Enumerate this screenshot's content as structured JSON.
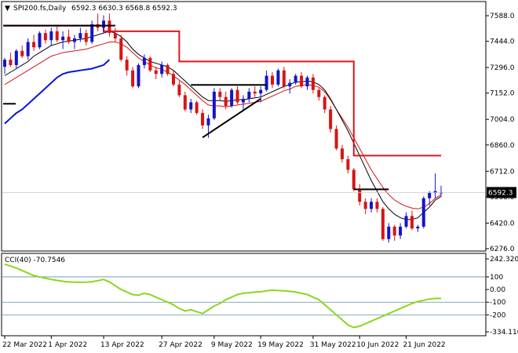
{
  "chart_data": {
    "type": "candlestick",
    "header": {
      "symbol": "SPI200.fs,Daily",
      "ohlc": "6592.3 6630.3 6568.8 6592.3"
    },
    "price_axis": {
      "ticks": [
        "7588.0",
        "7444.0",
        "7296.0",
        "7152.0",
        "7004.0",
        "6860.0",
        "6712.0",
        "6568.0",
        "6420.0",
        "6276.0"
      ],
      "tick_values": [
        7588,
        7444,
        7296,
        7152,
        7004,
        6860,
        6712,
        6568,
        6420,
        6276
      ],
      "last_price_label": "6592.3",
      "last_price": 6592.3
    },
    "cci_panel": {
      "title": "CCI(40) -70.7546",
      "ticks": [
        "242.3203",
        "100",
        "0.00",
        "-100",
        "-200",
        "-334.110"
      ],
      "tick_values": [
        242.3203,
        100,
        0,
        -100,
        -200,
        -334.11
      ],
      "levels": [
        100,
        -100,
        -200
      ]
    },
    "date_labels": [
      "22 Mar 2022",
      "1 Apr 2022",
      "13 Apr 2022",
      "27 Apr 2022",
      "9 May 2022",
      "19 May 2022",
      "31 May 2022",
      "10 Jun 2022",
      "21 Jun 2022"
    ],
    "date_label_bar_index": [
      0,
      8,
      17,
      27,
      36,
      44,
      53,
      61,
      69
    ],
    "candles": [
      [
        7300,
        7350,
        7260,
        7340
      ],
      [
        7340,
        7380,
        7300,
        7310
      ],
      [
        7310,
        7400,
        7290,
        7390
      ],
      [
        7390,
        7420,
        7350,
        7360
      ],
      [
        7360,
        7460,
        7340,
        7440
      ],
      [
        7440,
        7480,
        7390,
        7410
      ],
      [
        7410,
        7500,
        7400,
        7490
      ],
      [
        7490,
        7510,
        7430,
        7450
      ],
      [
        7450,
        7520,
        7420,
        7500
      ],
      [
        7500,
        7530,
        7440,
        7450
      ],
      [
        7450,
        7500,
        7400,
        7470
      ],
      [
        7470,
        7510,
        7430,
        7440
      ],
      [
        7440,
        7480,
        7400,
        7460
      ],
      [
        7460,
        7520,
        7440,
        7490
      ],
      [
        7490,
        7510,
        7420,
        7440
      ],
      [
        7440,
        7560,
        7430,
        7540
      ],
      [
        7540,
        7600,
        7500,
        7520
      ],
      [
        7520,
        7590,
        7490,
        7560
      ],
      [
        7560,
        7600,
        7470,
        7490
      ],
      [
        7490,
        7520,
        7440,
        7460
      ],
      [
        7460,
        7480,
        7330,
        7340
      ],
      [
        7340,
        7360,
        7250,
        7280
      ],
      [
        7280,
        7300,
        7180,
        7190
      ],
      [
        7190,
        7320,
        7180,
        7310
      ],
      [
        7310,
        7370,
        7290,
        7350
      ],
      [
        7350,
        7360,
        7270,
        7280
      ],
      [
        7280,
        7300,
        7230,
        7260
      ],
      [
        7260,
        7330,
        7240,
        7310
      ],
      [
        7310,
        7320,
        7250,
        7260
      ],
      [
        7260,
        7280,
        7190,
        7200
      ],
      [
        7200,
        7220,
        7130,
        7140
      ],
      [
        7140,
        7160,
        7050,
        7060
      ],
      [
        7060,
        7120,
        7040,
        7100
      ],
      [
        7100,
        7110,
        7030,
        7040
      ],
      [
        7040,
        7060,
        6950,
        6970
      ],
      [
        6970,
        7030,
        6900,
        7010
      ],
      [
        7010,
        7180,
        7000,
        7160
      ],
      [
        7160,
        7180,
        7110,
        7130
      ],
      [
        7130,
        7160,
        7060,
        7080
      ],
      [
        7080,
        7180,
        7070,
        7170
      ],
      [
        7170,
        7190,
        7090,
        7100
      ],
      [
        7100,
        7140,
        7050,
        7120
      ],
      [
        7120,
        7180,
        7100,
        7160
      ],
      [
        7160,
        7190,
        7130,
        7150
      ],
      [
        7150,
        7190,
        7100,
        7170
      ],
      [
        7170,
        7280,
        7160,
        7250
      ],
      [
        7250,
        7270,
        7180,
        7200
      ],
      [
        7200,
        7290,
        7190,
        7280
      ],
      [
        7280,
        7300,
        7180,
        7190
      ],
      [
        7190,
        7230,
        7150,
        7210
      ],
      [
        7210,
        7260,
        7200,
        7250
      ],
      [
        7250,
        7270,
        7180,
        7190
      ],
      [
        7190,
        7250,
        7170,
        7240
      ],
      [
        7240,
        7260,
        7150,
        7170
      ],
      [
        7170,
        7180,
        7110,
        7130
      ],
      [
        7130,
        7140,
        7040,
        7060
      ],
      [
        7060,
        7080,
        6930,
        6950
      ],
      [
        6950,
        6970,
        6830,
        6840
      ],
      [
        6840,
        6860,
        6760,
        6780
      ],
      [
        6780,
        6800,
        6700,
        6720
      ],
      [
        6720,
        6730,
        6600,
        6610
      ],
      [
        6610,
        6640,
        6520,
        6540
      ],
      [
        6540,
        6560,
        6470,
        6500
      ],
      [
        6500,
        6560,
        6480,
        6540
      ],
      [
        6540,
        6560,
        6480,
        6500
      ],
      [
        6500,
        6510,
        6320,
        6330
      ],
      [
        6330,
        6420,
        6310,
        6400
      ],
      [
        6400,
        6410,
        6320,
        6350
      ],
      [
        6350,
        6420,
        6330,
        6400
      ],
      [
        6400,
        6480,
        6390,
        6460
      ],
      [
        6460,
        6490,
        6380,
        6390
      ],
      [
        6390,
        6410,
        6370,
        6400
      ],
      [
        6400,
        6570,
        6390,
        6560
      ],
      [
        6560,
        6600,
        6520,
        6590
      ],
      [
        6590,
        6700,
        6560,
        6600
      ],
      [
        6592.3,
        6630.3,
        6568.8,
        6592.3
      ]
    ],
    "indicators": {
      "black_ma": [
        7250,
        7270,
        7290,
        7310,
        7330,
        7360,
        7380,
        7400,
        7420,
        7430,
        7440,
        7445,
        7450,
        7455,
        7460,
        7470,
        7480,
        7490,
        7500,
        7490,
        7470,
        7440,
        7400,
        7370,
        7350,
        7330,
        7320,
        7310,
        7300,
        7280,
        7250,
        7220,
        7190,
        7160,
        7130,
        7110,
        7110,
        7110,
        7105,
        7110,
        7115,
        7115,
        7120,
        7125,
        7130,
        7145,
        7160,
        7175,
        7190,
        7200,
        7215,
        7215,
        7220,
        7215,
        7200,
        7170,
        7120,
        7060,
        7000,
        6940,
        6870,
        6800,
        6730,
        6660,
        6600,
        6540,
        6500,
        6470,
        6450,
        6440,
        6440,
        6450,
        6480,
        6510,
        6550,
        6570
      ],
      "red_ma": [
        7200,
        7220,
        7240,
        7260,
        7280,
        7300,
        7320,
        7340,
        7360,
        7370,
        7380,
        7385,
        7390,
        7395,
        7400,
        7410,
        7420,
        7430,
        7440,
        7440,
        7430,
        7410,
        7380,
        7350,
        7330,
        7310,
        7295,
        7285,
        7270,
        7250,
        7225,
        7200,
        7170,
        7140,
        7110,
        7085,
        7080,
        7080,
        7075,
        7080,
        7085,
        7090,
        7095,
        7100,
        7105,
        7120,
        7135,
        7150,
        7165,
        7175,
        7190,
        7195,
        7200,
        7195,
        7185,
        7160,
        7115,
        7060,
        7010,
        6960,
        6900,
        6840,
        6780,
        6720,
        6670,
        6620,
        6580,
        6550,
        6530,
        6515,
        6505,
        6500,
        6510,
        6530,
        6560,
        6580
      ],
      "blue_band": [
        6980,
        7010,
        7040,
        7060,
        7090,
        7120,
        7150,
        7180,
        7210,
        7240,
        7260,
        7270,
        7275,
        7280,
        7285,
        7290,
        7300,
        7310,
        7340
      ]
    },
    "stop_line": {
      "segments": [
        [
          0,
          17,
          7532
        ],
        [
          17,
          24,
          7500
        ],
        [
          24,
          30,
          7500
        ],
        [
          30,
          34,
          7330
        ],
        [
          34,
          60,
          7330
        ],
        [
          60,
          66,
          6800
        ],
        [
          66,
          75,
          6800
        ]
      ]
    },
    "cci": [
      200,
      185,
      170,
      150,
      130,
      110,
      100,
      90,
      80,
      72,
      65,
      60,
      58,
      57,
      58,
      62,
      70,
      80,
      60,
      30,
      0,
      -20,
      -40,
      -45,
      -30,
      -40,
      -60,
      -80,
      -100,
      -120,
      -150,
      -170,
      -160,
      -175,
      -190,
      -160,
      -130,
      -110,
      -80,
      -60,
      -40,
      -30,
      -25,
      -20,
      -18,
      -10,
      -5,
      -8,
      -10,
      -15,
      -20,
      -30,
      -40,
      -60,
      -80,
      -120,
      -160,
      -200,
      -240,
      -280,
      -300,
      -290,
      -270,
      -250,
      -230,
      -210,
      -190,
      -170,
      -150,
      -130,
      -110,
      -95,
      -85,
      -75,
      -70,
      -70.75
    ]
  }
}
